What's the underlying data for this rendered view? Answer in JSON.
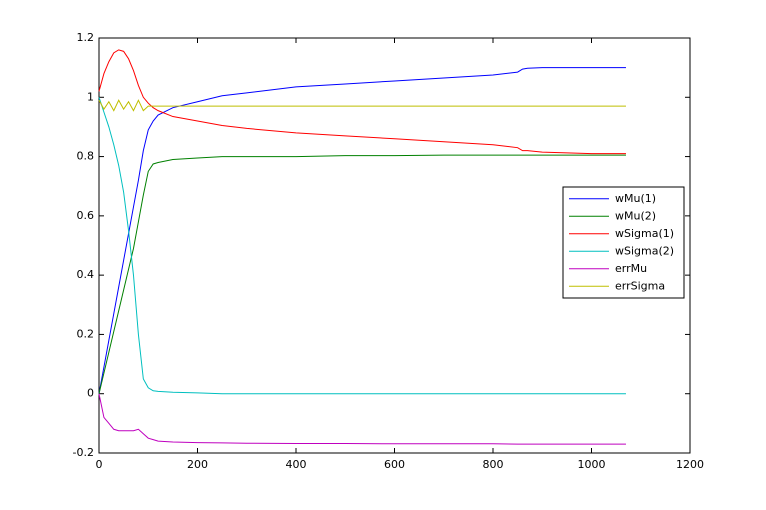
{
  "chart_data": {
    "type": "line",
    "x": [
      0,
      10,
      20,
      30,
      40,
      50,
      60,
      70,
      80,
      90,
      100,
      110,
      120,
      150,
      200,
      250,
      300,
      400,
      500,
      600,
      700,
      800,
      850,
      860,
      870,
      900,
      1000,
      1070
    ],
    "series": [
      {
        "name": "wMu(1)",
        "color": "#0000ff",
        "values": [
          0,
          0.09,
          0.18,
          0.27,
          0.36,
          0.45,
          0.54,
          0.63,
          0.72,
          0.82,
          0.89,
          0.92,
          0.94,
          0.965,
          0.985,
          1.005,
          1.015,
          1.035,
          1.045,
          1.055,
          1.065,
          1.075,
          1.085,
          1.095,
          1.098,
          1.1,
          1.1,
          1.1
        ]
      },
      {
        "name": "wMu(2)",
        "color": "#008000",
        "values": [
          0,
          0.07,
          0.14,
          0.21,
          0.28,
          0.35,
          0.42,
          0.49,
          0.58,
          0.67,
          0.75,
          0.775,
          0.78,
          0.79,
          0.795,
          0.8,
          0.8,
          0.8,
          0.803,
          0.803,
          0.805,
          0.805,
          0.805,
          0.805,
          0.805,
          0.805,
          0.805,
          0.805
        ]
      },
      {
        "name": "wSigma(1)",
        "color": "#ff0000",
        "values": [
          1.02,
          1.08,
          1.12,
          1.15,
          1.16,
          1.155,
          1.13,
          1.09,
          1.04,
          1.0,
          0.98,
          0.965,
          0.955,
          0.935,
          0.92,
          0.905,
          0.895,
          0.88,
          0.87,
          0.86,
          0.85,
          0.84,
          0.83,
          0.82,
          0.82,
          0.815,
          0.81,
          0.81
        ]
      },
      {
        "name": "wSigma(2)",
        "color": "#00bfbf",
        "values": [
          1.0,
          0.95,
          0.9,
          0.84,
          0.77,
          0.68,
          0.55,
          0.4,
          0.2,
          0.05,
          0.02,
          0.01,
          0.008,
          0.005,
          0.003,
          0,
          0,
          0,
          0,
          0,
          0,
          0,
          0,
          0,
          0,
          0,
          0,
          0
        ]
      },
      {
        "name": "errMu",
        "color": "#bf00bf",
        "values": [
          0,
          -0.08,
          -0.1,
          -0.12,
          -0.125,
          -0.125,
          -0.125,
          -0.125,
          -0.12,
          -0.135,
          -0.15,
          -0.155,
          -0.16,
          -0.163,
          -0.165,
          -0.166,
          -0.167,
          -0.168,
          -0.168,
          -0.169,
          -0.169,
          -0.169,
          -0.17,
          -0.17,
          -0.17,
          -0.17,
          -0.17,
          -0.17
        ]
      },
      {
        "name": "errSigma",
        "color": "#bfbf00",
        "values": [
          0.99,
          0.96,
          0.985,
          0.955,
          0.99,
          0.96,
          0.985,
          0.955,
          0.99,
          0.955,
          0.97,
          0.97,
          0.97,
          0.97,
          0.97,
          0.97,
          0.97,
          0.97,
          0.97,
          0.97,
          0.97,
          0.97,
          0.97,
          0.97,
          0.97,
          0.97,
          0.97,
          0.97
        ]
      }
    ],
    "xlim": [
      0,
      1200
    ],
    "xticks": [
      0,
      200,
      400,
      600,
      800,
      1000,
      1200
    ],
    "ylim": [
      -0.2,
      1.2
    ],
    "yticks": [
      -0.2,
      0,
      0.2,
      0.4,
      0.6,
      0.8,
      1,
      1.2
    ],
    "grid": false,
    "legend": "right"
  }
}
